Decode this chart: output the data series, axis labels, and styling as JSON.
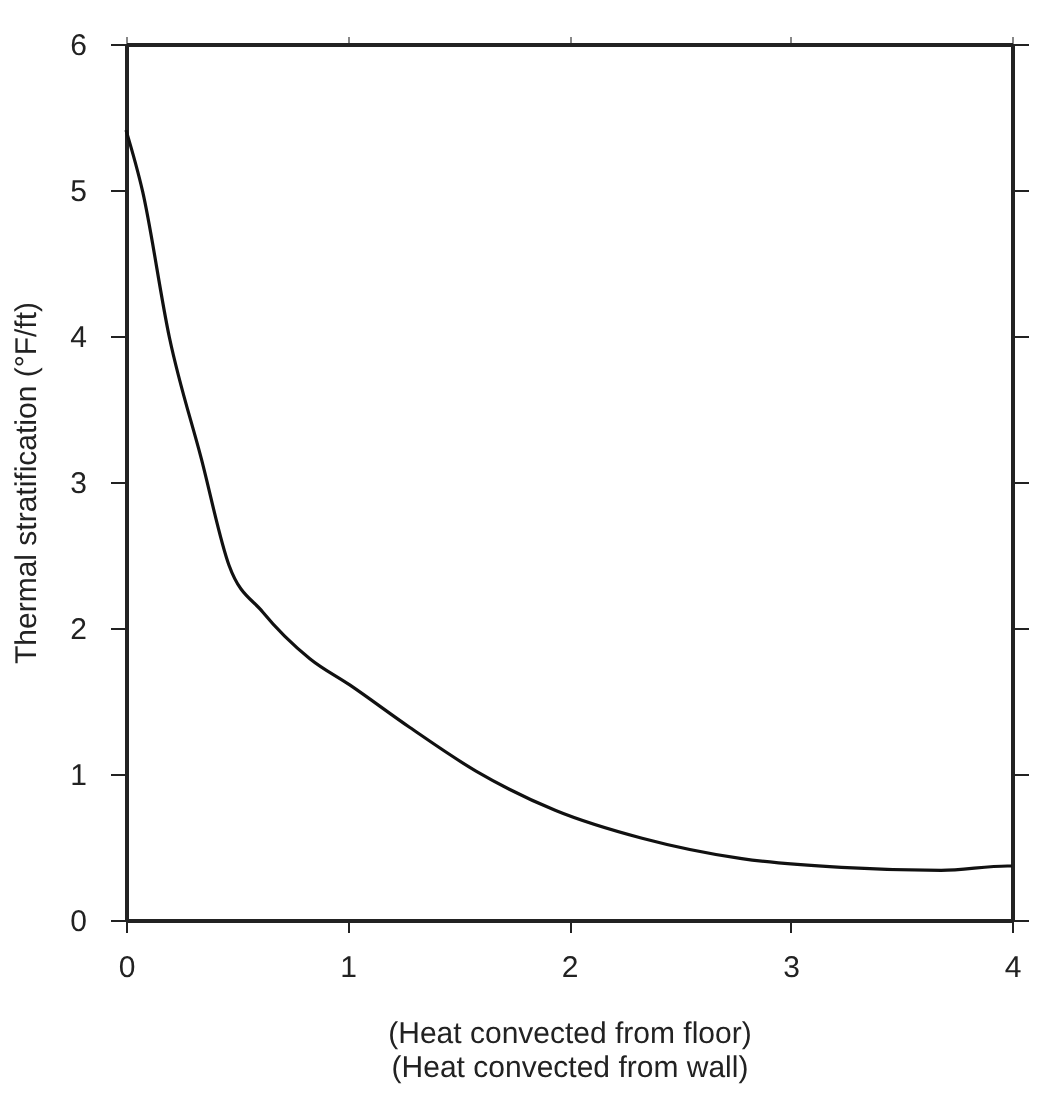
{
  "chart_data": {
    "type": "line",
    "xlabel": "(Heat convected from floor)\n(Heat convected from wall)",
    "ylabel": "Thermal stratification (°F/ft)",
    "x": [
      0,
      0.075,
      0.196,
      0.34,
      0.465,
      0.617,
      0.83,
      1.01,
      1.28,
      1.58,
      1.94,
      2.33,
      2.78,
      3.23,
      3.68,
      3.98,
      4
    ],
    "series": [
      {
        "color": "#111111",
        "values": [
          5.41,
          4.99,
          3.99,
          3.16,
          2.43,
          2.11,
          1.79,
          1.61,
          1.32,
          1.02,
          0.75,
          0.56,
          0.42,
          0.36,
          0.34,
          0.37,
          0.37
        ]
      }
    ],
    "xlim": [
      0,
      4
    ],
    "ylim": [
      0,
      6
    ],
    "xticks": [
      0,
      1,
      2,
      3,
      4
    ],
    "yticks": [
      0,
      1,
      2,
      3,
      4,
      5,
      6
    ],
    "grid": false,
    "line_style": "solid",
    "marker": "none"
  }
}
